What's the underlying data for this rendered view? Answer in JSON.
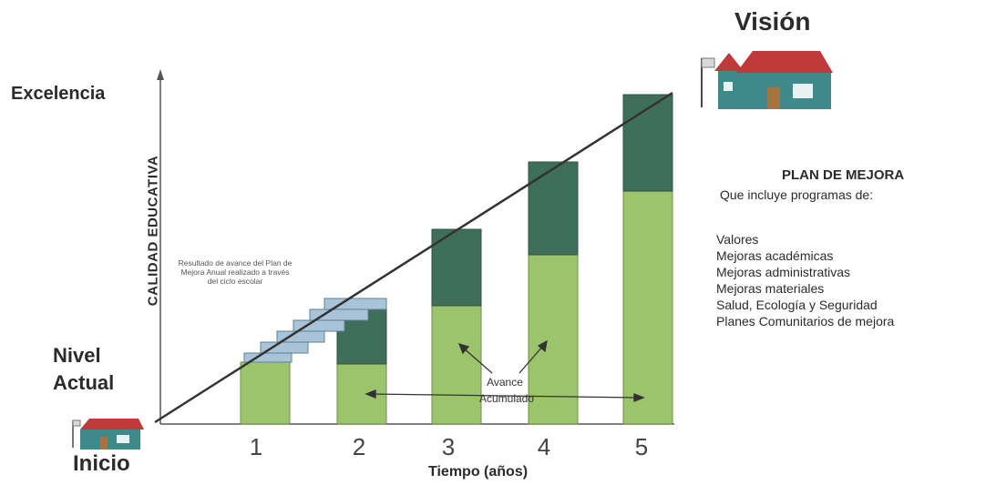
{
  "title": "Visión",
  "top_level": "Excelencia",
  "start_level": {
    "line1": "Nivel",
    "line2": "Actual"
  },
  "start_label": "Inicio",
  "y_axis_label": "CALIDAD EDUCATIVA",
  "x_axis_label": "Tiempo (años)",
  "x_ticks": [
    "1",
    "2",
    "3",
    "4",
    "5"
  ],
  "note": "Resultado de avance del Plan de Mejora Anual realizado a través del ciclo escolar",
  "cumulative_label": {
    "line1": "Avance",
    "line2": "Acumulado"
  },
  "plan": {
    "title": "PLAN DE MEJORA",
    "subtitle": "Que incluye programas de:",
    "items": [
      "Valores",
      "Mejoras académicas",
      "Mejoras administrativas",
      "Mejoras materiales",
      "Salud, Ecología y Seguridad",
      "Planes Comunitarios de mejora"
    ]
  },
  "colors": {
    "bar_light": "#9cc56b",
    "bar_dark": "#3f6e5b",
    "step": "#a9c4d8",
    "house_wall": "#3e8a8a",
    "house_roof": "#c0393b"
  }
}
